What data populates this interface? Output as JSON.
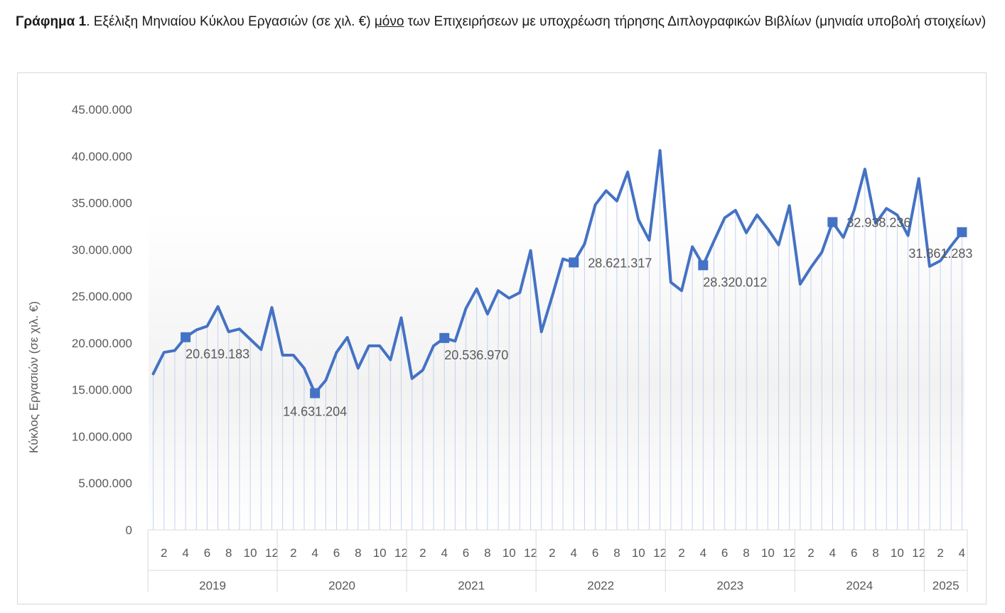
{
  "caption": {
    "label": "Γράφημα 1",
    "pre": ". Εξέλιξη Μηνιαίου Κύκλου Εργασιών (σε χιλ. €) ",
    "underlined": "μόνο",
    "post": " των Επιχειρήσεων με υποχρέωση τήρησης Διπλογραφικών Βιβλίων (μηνιαία υποβολή στοιχείων)"
  },
  "chart_data": {
    "type": "line",
    "title": "",
    "xlabel": "",
    "ylabel": "Κύκλος Εργασιών (σε χιλ. €)",
    "ylim": [
      0,
      45000000
    ],
    "yticks": [
      0,
      5000000,
      10000000,
      15000000,
      20000000,
      25000000,
      30000000,
      35000000,
      40000000,
      45000000
    ],
    "ytick_labels": [
      "0",
      "5.000.000",
      "10.000.000",
      "15.000.000",
      "20.000.000",
      "25.000.000",
      "30.000.000",
      "35.000.000",
      "40.000.000",
      "45.000.000"
    ],
    "month_tick_labels": [
      "2",
      "4",
      "6",
      "8",
      "10",
      "12"
    ],
    "grid": false,
    "drop_lines": true,
    "line_color": "#4472c4",
    "years": [
      {
        "label": "2019",
        "months": 12
      },
      {
        "label": "2020",
        "months": 12
      },
      {
        "label": "2021",
        "months": 12
      },
      {
        "label": "2022",
        "months": 12
      },
      {
        "label": "2023",
        "months": 12
      },
      {
        "label": "2024",
        "months": 12
      },
      {
        "label": "2025",
        "months": 4
      }
    ],
    "series": [
      {
        "values": [
          16700000,
          19000000,
          19200000,
          20619183,
          21400000,
          21800000,
          23900000,
          21200000,
          21500000,
          20400000,
          19300000,
          23800000,
          18700000,
          18700000,
          17300000,
          14631204,
          16000000,
          19000000,
          20600000,
          17300000,
          19700000,
          19700000,
          18200000,
          22700000,
          16200000,
          17100000,
          19700000,
          20536970,
          20200000,
          23700000,
          25800000,
          23100000,
          25600000,
          24800000,
          25400000,
          29900000,
          21200000,
          25000000,
          29000000,
          28621317,
          30600000,
          34800000,
          36300000,
          35200000,
          38300000,
          33200000,
          31000000,
          40600000,
          26500000,
          25600000,
          30300000,
          28320012,
          30900000,
          33400000,
          34200000,
          31800000,
          33700000,
          32200000,
          30500000,
          34700000,
          26300000,
          28100000,
          29700000,
          32938236,
          31300000,
          34200000,
          38600000,
          32800000,
          34400000,
          33700000,
          31500000,
          37600000,
          28200000,
          28800000,
          30400000,
          31861283
        ]
      }
    ],
    "annotations": [
      {
        "index": 3,
        "value": 20619183,
        "label": "20.619.183",
        "label_pos": "below-right"
      },
      {
        "index": 15,
        "value": 14631204,
        "label": "14.631.204",
        "label_pos": "below"
      },
      {
        "index": 27,
        "value": 20536970,
        "label": "20.536.970",
        "label_pos": "below-right"
      },
      {
        "index": 39,
        "value": 28621317,
        "label": "28.621.317",
        "label_pos": "right"
      },
      {
        "index": 51,
        "value": 28320012,
        "label": "28.320.012",
        "label_pos": "below-right"
      },
      {
        "index": 63,
        "value": 32938236,
        "label": "32.938.236",
        "label_pos": "right"
      },
      {
        "index": 75,
        "value": 31861283,
        "label": "31.861.283",
        "label_pos": "below-left"
      }
    ]
  }
}
